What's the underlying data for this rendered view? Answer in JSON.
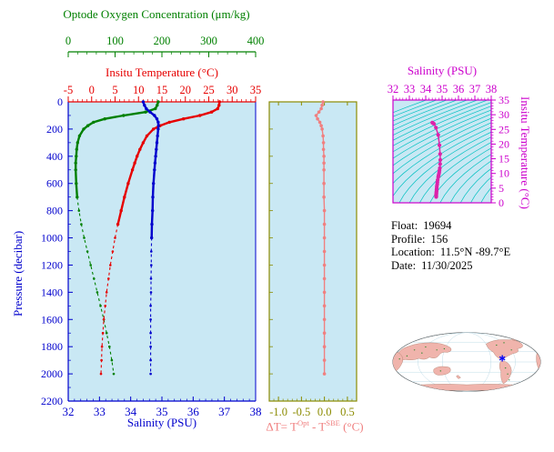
{
  "labels": {
    "oxygen_title": "Optode Oxygen Concentration (μm/kg)",
    "temp_title": "Insitu Temperature (°C)",
    "salinity_title": "Salinity (PSU)",
    "pressure_title": "Pressure (decibar)",
    "ts_title": "Salinity (PSU)",
    "ts_right_title": "Insitu Temperature (°C)",
    "delta_pre": "ΔT= T",
    "delta_sup1": "Opt",
    "delta_mid": " - T",
    "delta_sup2": "SBE",
    "delta_post": " (°C)"
  },
  "float_info": {
    "rows": [
      {
        "label": "Float:",
        "value": "19694"
      },
      {
        "label": "Profile:",
        "value": "156"
      },
      {
        "label": "Location:",
        "value": "11.5°N  -89.7°E"
      },
      {
        "label": "Date:",
        "value": "11/30/2025"
      }
    ]
  },
  "colors": {
    "panel_bg": "#c9e8f4",
    "oxygen": "#008000",
    "temperature": "#e60000",
    "salinity": "#0000cd",
    "pressure": "#0000cd",
    "delta_axis": "#8b8b00",
    "delta_series": "#f08080",
    "ts_axis": "#cc00cc",
    "ts_series": "#dd22aa",
    "contour": "#00c0c0",
    "map_land": "#f0b4ac",
    "map_ocean": "#ffffff",
    "map_marker": "#0000ff",
    "info_text": "#000000"
  },
  "map": {
    "marker_lat": 11.5,
    "marker_lon": -89.7,
    "center_lon": 180
  },
  "chart_data": [
    {
      "id": "profile-plot",
      "type": "line",
      "y_axis": {
        "label": "Pressure (decibar)",
        "range": [
          0,
          2200
        ],
        "tick_step": 200,
        "reversed": true
      },
      "x_axes": [
        {
          "id": "oxygen",
          "label": "Optode Oxygen Concentration (μm/kg)",
          "range": [
            0,
            400
          ],
          "ticks": [
            0,
            100,
            200,
            300,
            400
          ],
          "minor_step": 20
        },
        {
          "id": "temperature",
          "label": "Insitu Temperature (°C)",
          "range": [
            -5,
            35
          ],
          "ticks": [
            -5,
            0,
            5,
            10,
            15,
            20,
            25,
            30,
            35
          ],
          "minor_step": 1
        },
        {
          "id": "salinity",
          "label": "Salinity (PSU)",
          "range": [
            32,
            38
          ],
          "ticks": [
            32,
            33,
            34,
            35,
            36,
            37,
            38
          ],
          "minor_step": 0.2
        }
      ],
      "pressure_levels": [
        0,
        25,
        50,
        75,
        100,
        125,
        150,
        175,
        200,
        250,
        300,
        350,
        400,
        450,
        500,
        600,
        700,
        800,
        900,
        1000,
        1100,
        1200,
        1300,
        1400,
        1500,
        1600,
        1700,
        1800,
        1900,
        2000
      ],
      "series": [
        {
          "name": "oxygen",
          "axis": "oxygen",
          "solid_to": 700,
          "values": [
            192,
            190,
            186,
            165,
            118,
            78,
            54,
            42,
            33,
            24,
            20,
            18,
            17,
            16,
            16,
            17,
            19,
            23,
            28,
            34,
            41,
            48,
            55,
            62,
            69,
            76,
            82,
            88,
            93,
            97
          ]
        },
        {
          "name": "temperature",
          "axis": "temperature",
          "solid_to": 950,
          "values": [
            27.3,
            27.2,
            26.9,
            25.6,
            23.1,
            19.6,
            16.6,
            14.6,
            13.2,
            11.8,
            11.0,
            10.3,
            9.7,
            9.2,
            8.7,
            7.8,
            7.0,
            6.3,
            5.6,
            5.0,
            4.5,
            4.0,
            3.6,
            3.2,
            2.9,
            2.6,
            2.4,
            2.2,
            2.1,
            2.0
          ]
        },
        {
          "name": "salinity",
          "axis": "salinity",
          "solid_to": 1000,
          "values": [
            34.4,
            34.44,
            34.5,
            34.62,
            34.76,
            34.84,
            34.88,
            34.89,
            34.88,
            34.86,
            34.84,
            34.82,
            34.8,
            34.78,
            34.76,
            34.73,
            34.71,
            34.7,
            34.68,
            34.67,
            34.66,
            34.66,
            34.65,
            34.65,
            34.64,
            34.64,
            34.64,
            34.64,
            34.64,
            34.64
          ]
        }
      ]
    },
    {
      "id": "delta-plot",
      "type": "line",
      "x_axis": {
        "label": "ΔT= TOpt - TSBE (°C)",
        "range": [
          -1.2,
          0.7
        ],
        "ticks": [
          -1.0,
          -0.5,
          0.0,
          0.5
        ],
        "tick_labels": [
          "-1.0",
          "-0.5",
          "0.0",
          "0.5"
        ],
        "minor_step": 0.1
      },
      "y_axis": {
        "label": "Pressure (decibar)",
        "range": [
          0,
          2200
        ],
        "tick_step": 200,
        "reversed": true
      },
      "series": [
        {
          "name": "delta_t",
          "solid_to": 2000,
          "values": [
            -0.03,
            -0.05,
            -0.07,
            -0.12,
            -0.18,
            -0.15,
            -0.1,
            -0.07,
            -0.05,
            -0.03,
            -0.02,
            -0.02,
            -0.01,
            -0.01,
            -0.01,
            -0.01,
            -0.01,
            0.0,
            0.0,
            0.0,
            0.0,
            0.0,
            0.0,
            0.0,
            0.0,
            0.0,
            0.0,
            0.0,
            0.0,
            0.0
          ]
        }
      ]
    },
    {
      "id": "ts-plot",
      "type": "scatter",
      "x_axis": {
        "label": "Salinity (PSU)",
        "range": [
          32,
          38
        ],
        "ticks": [
          32,
          33,
          34,
          35,
          36,
          37,
          38
        ],
        "minor_step": 0.2
      },
      "y_axis": {
        "label": "Insitu Temperature (°C)",
        "range": [
          0,
          35
        ],
        "ticks": [
          0,
          5,
          10,
          15,
          20,
          25,
          30,
          35
        ],
        "minor_step": 1
      },
      "isopycnals": {
        "sigma_min": 19,
        "sigma_max": 30,
        "sigma_step": 0.5
      },
      "series_note": "T-S points are the (salinity, temperature) pairs of the profile chart"
    }
  ]
}
